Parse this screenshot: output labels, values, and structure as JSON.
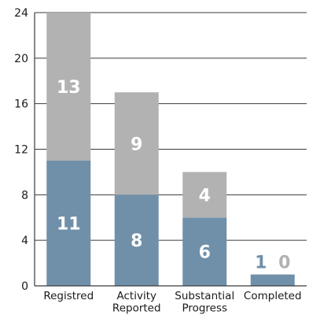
{
  "chart_data": {
    "type": "bar",
    "stacked": true,
    "categories": [
      [
        "Registred"
      ],
      [
        "Activity",
        "Reported"
      ],
      [
        "Substantial",
        "Progress"
      ],
      [
        "Completed"
      ]
    ],
    "series": [
      {
        "values": [
          11,
          8,
          6,
          1
        ],
        "color": "#7090aa",
        "label_color_inside": "#ffffff",
        "label_color_outside": "#7090aa"
      },
      {
        "values": [
          13,
          9,
          4,
          0
        ],
        "color": "#b2b2b2",
        "label_color_inside": "#ffffff",
        "label_color_outside": "#b2b2b2"
      }
    ],
    "yticks": [
      0,
      4,
      8,
      12,
      16,
      20,
      24
    ],
    "ylim": [
      0,
      24
    ],
    "grid": true,
    "title": "",
    "xlabel": "",
    "ylabel": ""
  }
}
